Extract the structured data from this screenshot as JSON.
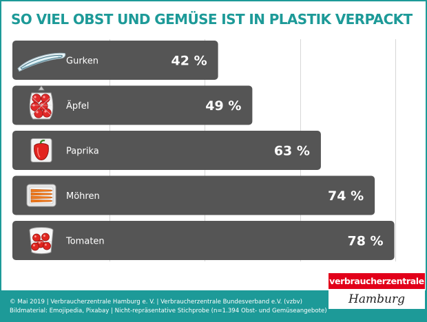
{
  "title": "SO VIEL OBST UND GEMÜSE IST IN PLASTIK VERPACKT",
  "chart_data": {
    "type": "bar",
    "orientation": "horizontal",
    "categories": [
      "Gurken",
      "Äpfel",
      "Paprika",
      "Möhren",
      "Tomaten"
    ],
    "values": [
      42,
      49,
      63,
      74,
      78
    ],
    "value_labels": [
      "42 %",
      "49 %",
      "63 %",
      "74 %",
      "78 %"
    ],
    "icons": [
      "cucumber-in-plastic-icon",
      "apples-in-net-bag-icon",
      "bell-pepper-in-plastic-icon",
      "carrots-in-plastic-tray-icon",
      "tomatoes-in-plastic-tub-icon"
    ],
    "xlim": [
      0,
      100
    ],
    "grid": true,
    "bar_color": "#555555",
    "grid_color": "#d6d6d6"
  },
  "footer": {
    "line1": "© Mai 2019 | Verbraucherzentrale Hamburg e. V. | Verbraucherzentrale Bundesverband e.V. (vzbv)",
    "line2": "Bildmaterial: Emojipedia, Pixabay | Nicht-repräsentative Stichprobe (n=1.394 Obst- und Gemüseangebote)",
    "background": "#1d9a98"
  },
  "logo": {
    "top": "verbraucherzentrale",
    "bottom": "Hamburg",
    "top_color": "#e2001a"
  },
  "accent_color": "#1d9a98"
}
